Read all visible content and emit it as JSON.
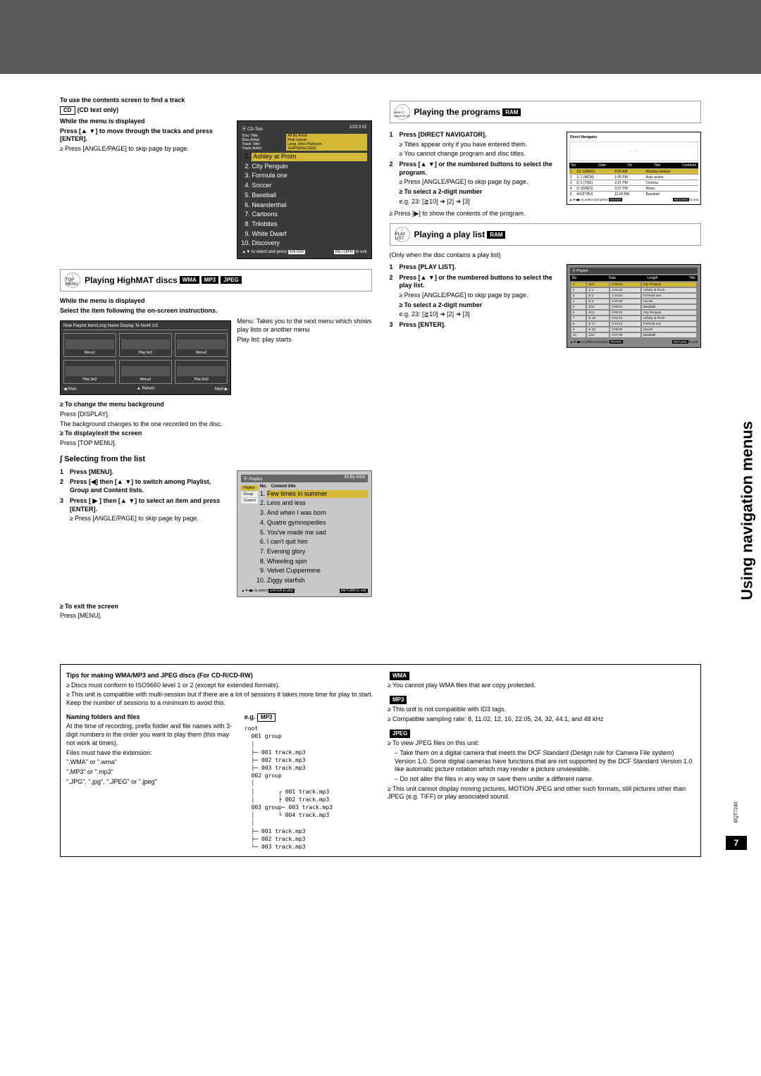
{
  "sideText": "Using navigation menus",
  "pageNumber": "7",
  "docCode": "RQT7240",
  "cdText": {
    "heading": "To use the contents screen to find a track",
    "badge": "CD",
    "badgeNote": "(CD text only)",
    "whileMenu": "While the menu is displayed",
    "instruction": "Press [▲ ▼] to move through the tracks and press [ENTER].",
    "note": "Press [ANGLE/PAGE] to skip page by page.",
    "screen": {
      "header": "CD-Text",
      "pos": "1/23   2:01",
      "discTitle": "Disc Title:",
      "discTitleVal": "All By Artist",
      "discArtist": "Disc Artist:",
      "discArtistVal": "Pink Island",
      "trackTitle": "Track Title:",
      "trackTitleVal": "Long John Platinum",
      "trackArtist": "Track Artist:",
      "trackArtistVal": "SHIPWRECKED",
      "tracks": [
        "Ashley at Prom",
        "City Penguin",
        "Formula one",
        "Soccer",
        "Baseball",
        "Neanderthal",
        "Cartoons",
        "Trilobites",
        "White Dwarf",
        "Discovery"
      ],
      "footer1": "▲▼ to select and press",
      "footer1b": "ENTER",
      "footer2": "RETURN",
      "footer2b": "to exit"
    }
  },
  "highmat": {
    "iconLabel": "TOP MENU",
    "title": "Playing HighMAT discs",
    "badges": [
      "WMA",
      "MP3",
      "JPEG"
    ],
    "whileMenu": "While the menu is displayed",
    "instruction": "Select the item following the on-screen instructions.",
    "menuDesc": "Menu:",
    "menuDescText": "Takes you to the next menu which shows play lists or another menu",
    "playlistDesc": "Play list: play starts",
    "menuScreen": {
      "header": "New Playlist Item/Long Name Display Te    No44   1/3",
      "items": [
        "Menu1",
        "Play list1",
        "Menu2",
        "Play list2",
        "Menu3",
        "Play list3"
      ],
      "footL": "◀ Prev",
      "footM": "▲ Return",
      "footR": "Next ▶"
    },
    "changeBg": "To change the menu background",
    "changeBgText1": "Press [DISPLAY].",
    "changeBgText2": "The background changes to the one recorded on the disc.",
    "displayExit": "To display/exit the screen",
    "displayExitText": "Press [TOP MENU].",
    "selecting": "Selecting from the list",
    "step1": "Press [MENU].",
    "step2": "Press [◀] then [▲ ▼] to switch among Playlist, Group and Content lists.",
    "step3": "Press [ ▶ ] then [▲ ▼] to select an item and press [ENTER].",
    "step3note": "Press [ANGLE/PAGE] to skip page by page.",
    "exitScreen": "To exit the screen",
    "exitScreenText": "Press [MENU].",
    "plScreen": {
      "header": "Playlist",
      "subhead": "All By Artist",
      "colNo": "No.",
      "colTitle": "Content title",
      "sideItems": [
        "Playlist",
        "Group",
        "Content"
      ],
      "rows": [
        "Few times in summer",
        "Less and less",
        "And when I was born",
        "Quatre gymnopedies",
        "You've made me sad",
        "I can't quit him",
        "Evening glory",
        "Wheeling spin",
        "Velvet Cuppermine",
        "Ziggy starfish"
      ],
      "footL": "▲▼◀▶ to select",
      "footM": "ENTER to play",
      "footR": "RETURN to exit"
    }
  },
  "programs": {
    "iconLabel": "DIRECT NAVIGATOR",
    "title": "Playing the programs",
    "badge": "RAM",
    "step1": "Press [DIRECT NAVIGATOR].",
    "step1a": "Titles appear only if you have entered them.",
    "step1b": "You cannot change program and disc titles.",
    "step2": "Press [▲ ▼] or the numbered buttons to select the program.",
    "step2a": "Press [ANGLE/PAGE] to skip page by page.",
    "step2b": "To select a 2-digit number",
    "step2c": "e.g. 23: [≧10] ➜ [2] ➜ [3]",
    "step2d": "Press [▶] to show the contents of the program.",
    "dnScreen": {
      "title": "Direct Navigator",
      "cols": [
        "No.",
        "Date",
        "On",
        "Title",
        "Contents"
      ],
      "rows": [
        [
          "1",
          "11/ 1(WED)",
          "0:05 AM",
          "Monday feature",
          ""
        ],
        [
          "2",
          "1/ 1 (MON)",
          "1:05 PM",
          "Auto action",
          ""
        ],
        [
          "3",
          "2/ 2 (TUE)",
          "2:21 PM",
          "Cinema",
          ""
        ],
        [
          "4",
          "3/ 3(WED)",
          "3:37 PM",
          "Music",
          ""
        ],
        [
          "5",
          "4/10(THU)",
          "11:05 AM",
          "Baseball",
          ""
        ]
      ],
      "footL": "▲▼◀▶ to select and press",
      "footLb": "ENTER",
      "footR": "RETURN",
      "footRb": "to exit"
    }
  },
  "playlist": {
    "iconLabel": "PLAY LIST",
    "title": "Playing a play list",
    "badge": "RAM",
    "note": "(Only when the disc contains a play list)",
    "step1": "Press [PLAY LIST].",
    "step2": "Press [▲ ▼] or the numbered buttons to select the play list.",
    "step2a": "Press [ANGLE/PAGE] to skip page by page.",
    "step2b": "To select a 2-digit number",
    "step2c": "e.g. 23: [≧10] ➜ [2] ➜ [3]",
    "step3": "Press [ENTER].",
    "plScreen": {
      "header": "Playlist",
      "cols": [
        "No.",
        "Date",
        "Length",
        "Title"
      ],
      "rows": [
        [
          "1",
          "11/1",
          "0:00:01",
          "City Penguin"
        ],
        [
          "2",
          "1/ 1",
          "0:01:20",
          "Ashley at Prom"
        ],
        [
          "3",
          "2/ 2",
          "1:10:04",
          "Formula one"
        ],
        [
          "4",
          "3/ 3",
          "0:10:20",
          "Soccer"
        ],
        [
          "5",
          "4/10",
          "0:00:01",
          "Baseball"
        ],
        [
          "6",
          "4/11",
          "0:00:01",
          "City Penguin"
        ],
        [
          "7",
          "4/ 15",
          "0:01:10",
          "Ashley at Prom"
        ],
        [
          "8",
          "4/ 17",
          "0:13:22",
          "Formula one"
        ],
        [
          "9",
          "4/ 20",
          "0:05:30",
          "Soccer"
        ],
        [
          "10",
          "4/22",
          "0:07:29",
          "Baseball"
        ]
      ],
      "footL": "▲▼◀▶ to select and press",
      "footLb": "ENTER",
      "footR": "RETURN",
      "footRb": "to exit"
    }
  },
  "tips": {
    "heading": "Tips for making WMA/MP3 and JPEG discs (For CD-R/CD-RW)",
    "b1": "Discs must conform to ISO9660 level 1 or 2 (except for extended formats).",
    "b2": "This unit is compatible with multi-session but if there are a lot of sessions it takes more time for play to start. Keep the number of sessions to a minimum to avoid this.",
    "naming": "Naming folders and files",
    "namingText": "At the time of recording, prefix folder and file names with 3-digit numbers in the order you want to play them (this may not work at times).",
    "filesExt": "Files must have the extension:",
    "ext1": "\".WMA\" or \".wma\"",
    "ext2": "\".MP3\" or \".mp3\"",
    "ext3": "\".JPG\", \".jpg\", \".JPEG\" or \".jpeg\"",
    "egLabel": "e.g.",
    "egBadge": "MP3",
    "tree": "root\n  001 group\n  │\n  ├─ 001 track.mp3\n  ├─ 002 track.mp3\n  ├─ 003 track.mp3\n  002 group\n  │\n  │       ┌ 001 track.mp3\n  │       ├ 002 track.mp3\n  003 group─ 003 track.mp3\n  │       └ 004 track.mp3\n  │\n  ├─ 001 track.mp3\n  ├─ 002 track.mp3\n  └─ 003 track.mp3",
    "wmaBadge": "WMA",
    "wma1": "You cannot play WMA files that are copy protected.",
    "mp3Badge": "MP3",
    "mp31": "This unit is not compatible with ID3 tags.",
    "mp32": "Compatible sampling rate: 8, 11.02, 12, 16, 22.05, 24, 32, 44.1, and 48 kHz",
    "jpegBadge": "JPEG",
    "jpeg1": "To view JPEG files on this unit:",
    "jpeg1a": "Take them on a digital camera that meets the DCF Standard (Design rule for Camera File system) Version 1.0. Some digital cameras have functions that are not supported by the DCF Standard Version 1.0 like automatic picture rotation which may render a picture unviewable.",
    "jpeg1b": "Do not alter the files in any way or save them under a different name.",
    "jpeg2": "This unit cannot display moving pictures, MOTION JPEG and other such formats, still pictures other than JPEG (e.g. TIFF) or play associated sound."
  }
}
